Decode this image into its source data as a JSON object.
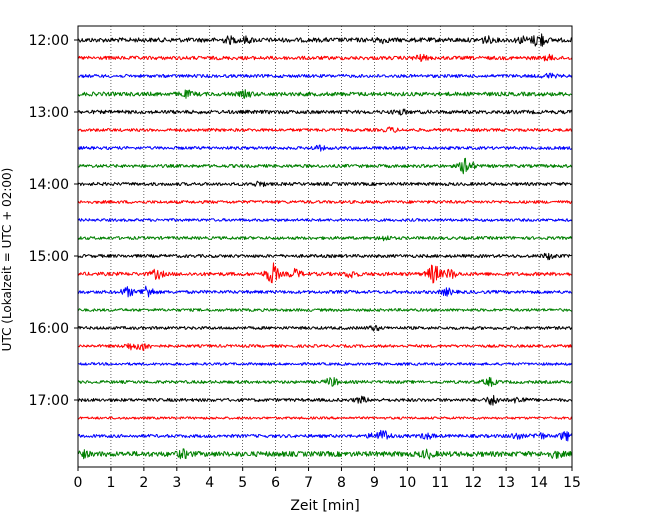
{
  "chart_data": {
    "type": "line",
    "title": "",
    "xlabel": "Zeit  [min]",
    "ylabel": "UTC (Lokalzeit = UTC + 02:00)",
    "xlim": [
      0,
      15
    ],
    "x_ticks": [
      0,
      1,
      2,
      3,
      4,
      5,
      6,
      7,
      8,
      9,
      10,
      11,
      12,
      13,
      14,
      15
    ],
    "x_tick_labels": [
      "0",
      "1",
      "2",
      "3",
      "4",
      "5",
      "6",
      "7",
      "8",
      "9",
      "10",
      "11",
      "12",
      "13",
      "14",
      "15"
    ],
    "grid": "vertical dotted",
    "trace_interval_min": 15,
    "trace_colors": [
      "#000000",
      "#ff0000",
      "#0000ff",
      "#008000"
    ],
    "y_ticks": [
      {
        "label": "12:00",
        "trace": 0
      },
      {
        "label": "13:00",
        "trace": 4
      },
      {
        "label": "14:00",
        "trace": 8
      },
      {
        "label": "15:00",
        "trace": 12
      },
      {
        "label": "16:00",
        "trace": 16
      },
      {
        "label": "17:00",
        "trace": 20
      }
    ],
    "traces": [
      {
        "start": "12:00",
        "color_index": 0,
        "amp": 2.2,
        "events": [
          {
            "t": 4.6,
            "a": 2.5
          },
          {
            "t": 5.1,
            "a": 2.2
          },
          {
            "t": 9.2,
            "a": 2
          },
          {
            "t": 12.4,
            "a": 2.5
          },
          {
            "t": 13.5,
            "a": 2.5
          },
          {
            "t": 14.0,
            "a": 7
          }
        ]
      },
      {
        "start": "12:15",
        "color_index": 1,
        "amp": 1.8,
        "events": [
          {
            "t": 10.4,
            "a": 2.5
          },
          {
            "t": 14.3,
            "a": 2
          }
        ]
      },
      {
        "start": "12:30",
        "color_index": 2,
        "amp": 1.6,
        "events": [
          {
            "t": 14.3,
            "a": 2
          }
        ]
      },
      {
        "start": "12:45",
        "color_index": 3,
        "amp": 2.0,
        "events": [
          {
            "t": 3.3,
            "a": 2.5
          },
          {
            "t": 5.1,
            "a": 2.5
          }
        ]
      },
      {
        "start": "13:00",
        "color_index": 0,
        "amp": 1.8,
        "events": [
          {
            "t": 9.8,
            "a": 2
          }
        ]
      },
      {
        "start": "13:15",
        "color_index": 1,
        "amp": 1.5,
        "events": [
          {
            "t": 9.5,
            "a": 2
          }
        ]
      },
      {
        "start": "13:30",
        "color_index": 2,
        "amp": 1.5,
        "events": [
          {
            "t": 7.3,
            "a": 2
          }
        ]
      },
      {
        "start": "13:45",
        "color_index": 3,
        "amp": 1.6,
        "events": [
          {
            "t": 11.8,
            "a": 9
          }
        ]
      },
      {
        "start": "14:00",
        "color_index": 0,
        "amp": 1.6,
        "events": [
          {
            "t": 5.5,
            "a": 2
          }
        ]
      },
      {
        "start": "14:15",
        "color_index": 1,
        "amp": 1.5,
        "events": []
      },
      {
        "start": "14:30",
        "color_index": 2,
        "amp": 1.4,
        "events": []
      },
      {
        "start": "14:45",
        "color_index": 3,
        "amp": 1.5,
        "events": [
          {
            "t": 9.3,
            "a": 2
          }
        ]
      },
      {
        "start": "15:00",
        "color_index": 0,
        "amp": 1.6,
        "events": [
          {
            "t": 14.3,
            "a": 2.5
          }
        ]
      },
      {
        "start": "15:15",
        "color_index": 1,
        "amp": 1.8,
        "events": [
          {
            "t": 2.4,
            "a": 4
          },
          {
            "t": 5.9,
            "a": 10
          },
          {
            "t": 6.6,
            "a": 4
          },
          {
            "t": 8.3,
            "a": 3
          },
          {
            "t": 10.8,
            "a": 9
          },
          {
            "t": 11.3,
            "a": 4
          }
        ]
      },
      {
        "start": "15:30",
        "color_index": 2,
        "amp": 1.6,
        "events": [
          {
            "t": 1.5,
            "a": 4
          },
          {
            "t": 2.1,
            "a": 6
          },
          {
            "t": 11.2,
            "a": 3
          }
        ]
      },
      {
        "start": "15:45",
        "color_index": 3,
        "amp": 1.4,
        "events": []
      },
      {
        "start": "16:00",
        "color_index": 0,
        "amp": 1.5,
        "events": [
          {
            "t": 9.0,
            "a": 2
          }
        ]
      },
      {
        "start": "16:15",
        "color_index": 1,
        "amp": 1.4,
        "events": [
          {
            "t": 1.6,
            "a": 3
          },
          {
            "t": 2.0,
            "a": 4
          }
        ]
      },
      {
        "start": "16:30",
        "color_index": 2,
        "amp": 1.3,
        "events": []
      },
      {
        "start": "16:45",
        "color_index": 3,
        "amp": 1.5,
        "events": [
          {
            "t": 7.7,
            "a": 4
          },
          {
            "t": 12.5,
            "a": 3.5
          }
        ]
      },
      {
        "start": "17:00",
        "color_index": 0,
        "amp": 1.6,
        "events": [
          {
            "t": 8.6,
            "a": 2.5
          },
          {
            "t": 12.6,
            "a": 4.5
          },
          {
            "t": 13.4,
            "a": 3
          }
        ]
      },
      {
        "start": "17:15",
        "color_index": 1,
        "amp": 1.2,
        "events": []
      },
      {
        "start": "17:30",
        "color_index": 2,
        "amp": 1.6,
        "events": [
          {
            "t": 9.0,
            "a": 2.5
          },
          {
            "t": 9.3,
            "a": 5
          },
          {
            "t": 10.6,
            "a": 2.5
          },
          {
            "t": 13.3,
            "a": 2.5
          },
          {
            "t": 14.0,
            "a": 3
          },
          {
            "t": 14.8,
            "a": 4
          }
        ]
      },
      {
        "start": "17:45",
        "color_index": 3,
        "amp": 2.6,
        "events": [
          {
            "t": 0.1,
            "a": 3
          },
          {
            "t": 3.2,
            "a": 3
          },
          {
            "t": 10.6,
            "a": 3
          },
          {
            "t": 14.5,
            "a": 2.5
          }
        ]
      }
    ]
  }
}
